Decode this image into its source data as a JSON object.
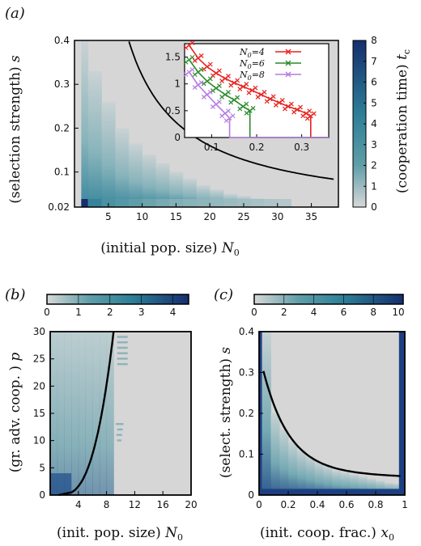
{
  "chart_data": [
    {
      "panel": "(a)",
      "type": "heatmap",
      "xlabel": "(initial pop. size)",
      "xlabel_sym": "N",
      "xlabel_sub": "0",
      "ylabel": "(selection strength)",
      "ylabel_sym": "s",
      "colorbar_label": "(cooperation time)",
      "colorbar_sym": "t",
      "colorbar_sub": "c",
      "xlim": [
        0,
        39
      ],
      "ylim": [
        0.02,
        0.4
      ],
      "xticks": [
        "5",
        "10",
        "15",
        "20",
        "25",
        "30",
        "35"
      ],
      "xtick_values": [
        5,
        10,
        15,
        20,
        25,
        30,
        35
      ],
      "yticks": [
        "0.02",
        "0.1",
        "0.2",
        "0.3",
        "0.4"
      ],
      "ytick_values": [
        0.02,
        0.1,
        0.2,
        0.3,
        0.4
      ],
      "colorbar_ticks": [
        "0",
        "1",
        "2",
        "3",
        "4",
        "5",
        "6",
        "7",
        "8"
      ],
      "colorbar_range": [
        0,
        8
      ],
      "boundary_curve": {
        "k": 3.2,
        "description": "s = k / N0"
      },
      "heatmap_columns": [
        {
          "x0": 1,
          "x1": 2,
          "top": 0.4,
          "t_bottom": 8
        },
        {
          "x0": 2,
          "x1": 4,
          "top": 0.33,
          "t_bottom": 4
        },
        {
          "x0": 4,
          "x1": 6,
          "top": 0.26,
          "t_bottom": 3
        },
        {
          "x0": 6,
          "x1": 8,
          "top": 0.2,
          "t_bottom": 2.5
        },
        {
          "x0": 8,
          "x1": 10,
          "top": 0.165,
          "t_bottom": 2
        },
        {
          "x0": 10,
          "x1": 12,
          "top": 0.14,
          "t_bottom": 1.8
        },
        {
          "x0": 12,
          "x1": 14,
          "top": 0.12,
          "t_bottom": 1.6
        },
        {
          "x0": 14,
          "x1": 16,
          "top": 0.1,
          "t_bottom": 1.4
        },
        {
          "x0": 16,
          "x1": 18,
          "top": 0.085,
          "t_bottom": 1.3
        },
        {
          "x0": 18,
          "x1": 20,
          "top": 0.07,
          "t_bottom": 1.2
        },
        {
          "x0": 20,
          "x1": 22,
          "top": 0.06,
          "t_bottom": 1.1
        },
        {
          "x0": 22,
          "x1": 24,
          "top": 0.05,
          "t_bottom": 1.0
        },
        {
          "x0": 24,
          "x1": 26,
          "top": 0.045,
          "t_bottom": 0.9
        },
        {
          "x0": 26,
          "x1": 28,
          "top": 0.04,
          "t_bottom": 0.8
        },
        {
          "x0": 28,
          "x1": 30,
          "top": 0.035,
          "t_bottom": 0.7
        },
        {
          "x0": 30,
          "x1": 32,
          "top": 0.03,
          "t_bottom": 0.6
        }
      ],
      "inset": {
        "type": "line",
        "xlim": [
          0.04,
          0.36
        ],
        "ylim": [
          0,
          1.75
        ],
        "xticks": [
          "0.1",
          "0.2",
          "0.3"
        ],
        "xtick_values": [
          0.1,
          0.2,
          0.3
        ],
        "yticks": [
          "0",
          "0.5",
          "1",
          "1.5"
        ],
        "ytick_values": [
          0,
          0.5,
          1,
          1.5
        ],
        "series": [
          {
            "name": "N0=4",
            "name_sym": "N",
            "name_sub": "0",
            "name_val": "=4",
            "color": "#e8201d",
            "x": [
              0.05,
              0.07,
              0.09,
              0.11,
              0.13,
              0.15,
              0.17,
              0.19,
              0.21,
              0.23,
              0.25,
              0.27,
              0.29,
              0.31,
              0.32
            ],
            "y": [
              1.72,
              1.48,
              1.32,
              1.2,
              1.1,
              1.02,
              0.95,
              0.88,
              0.8,
              0.72,
              0.65,
              0.58,
              0.52,
              0.45,
              0.4
            ]
          },
          {
            "name": "N0=6",
            "name_sym": "N",
            "name_sub": "0",
            "name_val": "=6",
            "color": "#2a8a2a",
            "x": [
              0.05,
              0.07,
              0.09,
              0.11,
              0.13,
              0.15,
              0.17,
              0.185
            ],
            "y": [
              1.45,
              1.22,
              1.05,
              0.92,
              0.8,
              0.7,
              0.58,
              0.5
            ]
          },
          {
            "name": "N0=8",
            "name_sym": "N",
            "name_sub": "0",
            "name_val": "=8",
            "color": "#b37be0",
            "x": [
              0.05,
              0.07,
              0.09,
              0.11,
              0.13,
              0.14
            ],
            "y": [
              1.22,
              0.98,
              0.8,
              0.62,
              0.45,
              0.36
            ]
          }
        ],
        "drop_to_zero": [
          0.32,
          0.185,
          0.14
        ]
      }
    },
    {
      "panel": "(b)",
      "type": "heatmap",
      "xlabel": "(init. pop. size)",
      "xlabel_sym": "N",
      "xlabel_sub": "0",
      "ylabel": "(gr. adv. coop. )",
      "ylabel_sym": "p",
      "xlim": [
        0,
        20
      ],
      "ylim": [
        0,
        30
      ],
      "xticks": [
        "4",
        "8",
        "12",
        "16",
        "20"
      ],
      "xtick_values": [
        4,
        8,
        12,
        16,
        20
      ],
      "yticks": [
        "0",
        "5",
        "10",
        "15",
        "20",
        "25",
        "30"
      ],
      "ytick_values": [
        0,
        5,
        10,
        15,
        20,
        25,
        30
      ],
      "colorbar_ticks": [
        "0",
        "1",
        "2",
        "3",
        "4"
      ],
      "colorbar_range": [
        0,
        4.5
      ]
    },
    {
      "panel": "(c)",
      "type": "heatmap",
      "xlabel": "(init. coop. frac.)",
      "xlabel_sym": "x",
      "xlabel_sub": "0",
      "ylabel": "(select. strength)",
      "ylabel_sym": "s",
      "xlim": [
        0,
        1
      ],
      "ylim": [
        0,
        0.4
      ],
      "xticks": [
        "0",
        "0.2",
        "0.4",
        "0.6",
        "0.8",
        "1"
      ],
      "xtick_values": [
        0,
        0.2,
        0.4,
        0.6,
        0.8,
        1
      ],
      "yticks": [
        "0",
        "0.1",
        "0.2",
        "0.3",
        "0.4"
      ],
      "ytick_values": [
        0,
        0.1,
        0.2,
        0.3,
        0.4
      ],
      "colorbar_ticks": [
        "0",
        "2",
        "4",
        "6",
        "8",
        "10"
      ],
      "colorbar_range": [
        0,
        10
      ]
    }
  ]
}
